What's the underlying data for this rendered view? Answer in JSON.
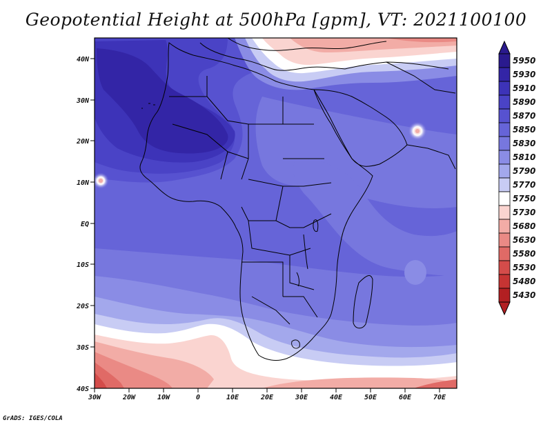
{
  "title": "Geopotential Height at 500hPa [gpm], VT: 2021100100",
  "footer": "GrADS: IGES/COLA",
  "map": {
    "type": "filled-contour",
    "variable": "Geopotential Height at 500hPa",
    "units": "gpm",
    "valid_time": "2021100100",
    "lon_range": [
      -30,
      75
    ],
    "lat_range": [
      -40,
      45
    ],
    "lon_ticks": [
      "30W",
      "20W",
      "10W",
      "0",
      "10E",
      "20E",
      "30E",
      "40E",
      "50E",
      "60E",
      "70E"
    ],
    "lat_ticks": [
      "40N",
      "30N",
      "20N",
      "10N",
      "EQ",
      "10S",
      "20S",
      "30S",
      "40S"
    ]
  },
  "colorbar": {
    "levels": [
      "5950",
      "5930",
      "5910",
      "5890",
      "5870",
      "5850",
      "5830",
      "5810",
      "5790",
      "5770",
      "5750",
      "5730",
      "5680",
      "5630",
      "5580",
      "5530",
      "5480",
      "5430"
    ],
    "colors": [
      "#2a1a8e",
      "#3325a6",
      "#3d33b8",
      "#4a43c6",
      "#5752d0",
      "#6664d8",
      "#7777de",
      "#8a8ce5",
      "#a3a8ec",
      "#c8ccf4",
      "#ffffff",
      "#fad4d0",
      "#f2aca6",
      "#ea8a85",
      "#e06a66",
      "#d44c4a",
      "#c63433",
      "#b21f22"
    ]
  }
}
